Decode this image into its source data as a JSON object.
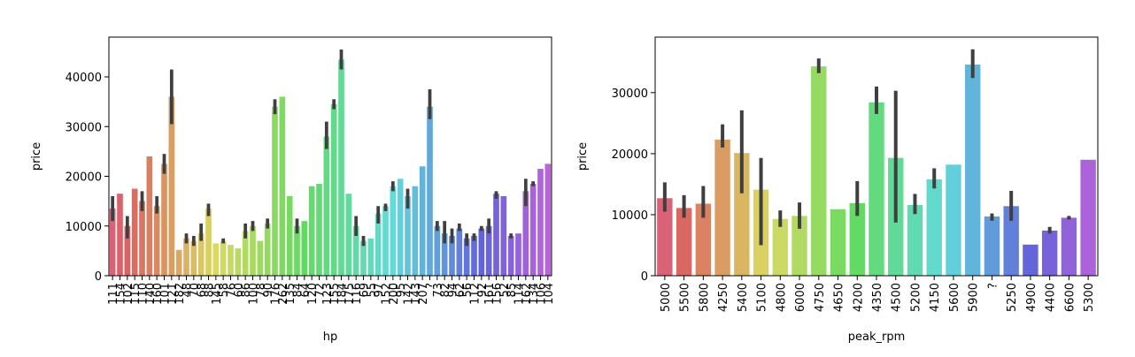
{
  "chart_data": [
    {
      "type": "bar",
      "xlabel": "hp",
      "ylabel": "price",
      "palette": "husl",
      "categories": [
        "111",
        "154",
        "102",
        "115",
        "110",
        "140",
        "160",
        "101",
        "121",
        "182",
        "48",
        "70",
        "68",
        "88",
        "145",
        "58",
        "76",
        "60",
        "86",
        "100",
        "78",
        "90",
        "176",
        "262",
        "135",
        "84",
        "64",
        "120",
        "72",
        "123",
        "155",
        "184",
        "175",
        "116",
        "69",
        "55",
        "97",
        "152",
        "200",
        "95",
        "142",
        "143",
        "207",
        "?",
        "73",
        "82",
        "94",
        "62",
        "56",
        "112",
        "92",
        "161",
        "156",
        "52",
        "85",
        "114",
        "162",
        "134",
        "106",
        "104"
      ],
      "values": [
        13500,
        16500,
        10000,
        17500,
        15000,
        24000,
        14000,
        22500,
        36000,
        5200,
        7500,
        7000,
        8500,
        13500,
        6500,
        7000,
        6200,
        5500,
        9000,
        10000,
        7000,
        10500,
        34000,
        36000,
        16000,
        10000,
        11000,
        18000,
        18500,
        28000,
        34500,
        43500,
        16500,
        10000,
        7000,
        7500,
        12500,
        14000,
        18000,
        19500,
        16000,
        18000,
        22000,
        34000,
        10000,
        8500,
        8000,
        9500,
        7500,
        8000,
        9500,
        10000,
        16500,
        16000,
        8000,
        8500,
        17000,
        18500,
        21500,
        22500
      ],
      "ci_low": [
        11000,
        null,
        7500,
        null,
        13000,
        null,
        12500,
        20500,
        30500,
        null,
        6500,
        6000,
        7000,
        12000,
        null,
        6500,
        null,
        null,
        7500,
        9000,
        null,
        9500,
        32500,
        null,
        null,
        8500,
        null,
        null,
        null,
        25500,
        33500,
        41500,
        null,
        8000,
        6000,
        null,
        10500,
        13000,
        17000,
        null,
        13500,
        null,
        null,
        31500,
        9000,
        6500,
        6500,
        9000,
        6000,
        7000,
        9000,
        8500,
        15500,
        null,
        7500,
        null,
        14000,
        18000,
        null,
        null
      ],
      "ci_high": [
        16000,
        null,
        12000,
        null,
        17000,
        null,
        16000,
        24500,
        41500,
        null,
        8500,
        8000,
        10500,
        14500,
        null,
        7500,
        null,
        null,
        10500,
        11000,
        null,
        11500,
        35500,
        null,
        null,
        11500,
        null,
        null,
        null,
        31000,
        35500,
        45500,
        null,
        12000,
        8000,
        null,
        14000,
        14500,
        19000,
        null,
        17500,
        null,
        null,
        37500,
        11000,
        11000,
        9500,
        10500,
        8500,
        8500,
        10000,
        11500,
        17000,
        null,
        8500,
        null,
        19500,
        19000,
        null,
        null
      ],
      "ylim": [
        0,
        48000
      ],
      "yticks": [
        0,
        10000,
        20000,
        30000,
        40000
      ]
    },
    {
      "type": "bar",
      "xlabel": "peak_rpm",
      "ylabel": "price",
      "palette": "husl",
      "categories": [
        "5000",
        "5500",
        "5800",
        "4250",
        "5400",
        "5100",
        "4800",
        "6000",
        "4750",
        "4650",
        "4200",
        "4350",
        "4500",
        "5200",
        "4150",
        "5600",
        "5900",
        "?",
        "5250",
        "4900",
        "4400",
        "6600",
        "5300"
      ],
      "values": [
        12700,
        11100,
        11800,
        22300,
        20100,
        14100,
        9300,
        9800,
        34300,
        10900,
        11900,
        28400,
        19300,
        11600,
        15800,
        18200,
        34600,
        9700,
        11400,
        5100,
        7400,
        9500,
        19000
      ],
      "ci_low": [
        10500,
        9500,
        9500,
        21000,
        13500,
        5000,
        8000,
        7700,
        33200,
        null,
        9800,
        26500,
        8700,
        10100,
        14300,
        null,
        32400,
        9000,
        9000,
        null,
        6900,
        9200,
        null
      ],
      "ci_high": [
        15300,
        13200,
        14700,
        24800,
        27100,
        19300,
        10700,
        12000,
        35600,
        null,
        15500,
        31000,
        30300,
        13400,
        17600,
        null,
        37100,
        10200,
        13900,
        null,
        8000,
        9800,
        null
      ],
      "ylim": [
        0,
        39100
      ],
      "yticks": [
        0,
        10000,
        20000,
        30000
      ]
    }
  ]
}
